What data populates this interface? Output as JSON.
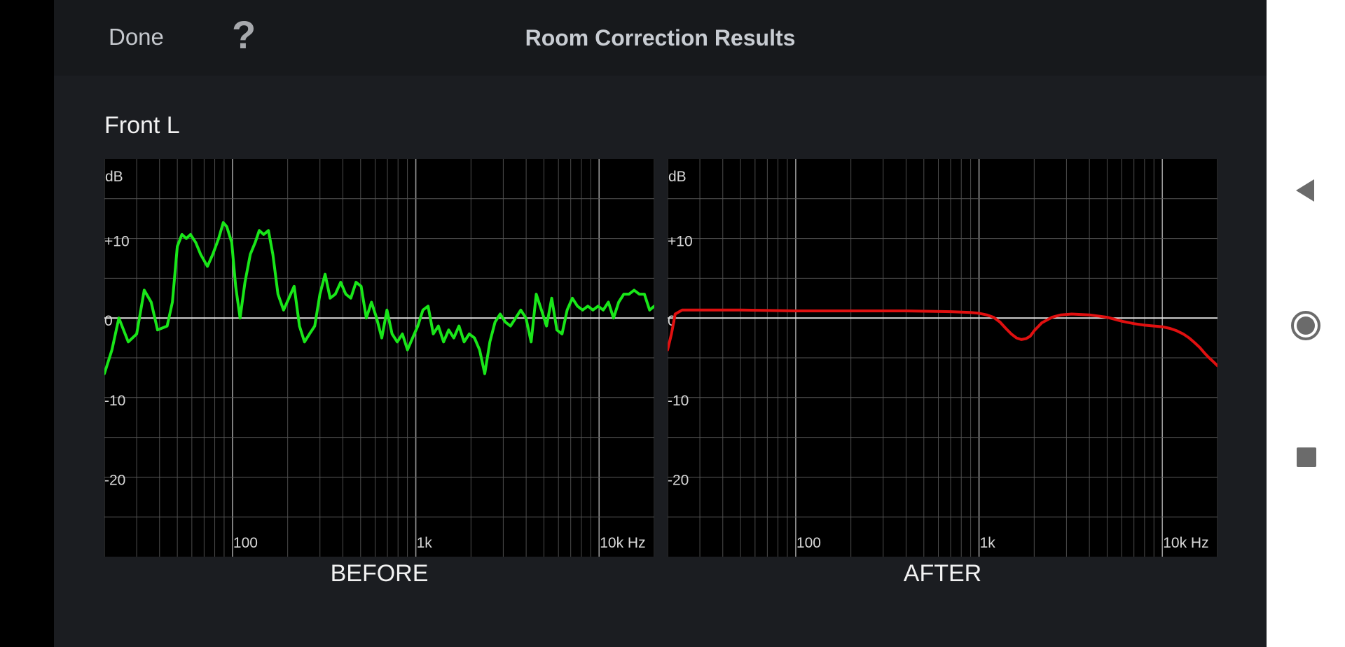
{
  "header": {
    "done_label": "Done",
    "help_label": "?",
    "title": "Room Correction Results"
  },
  "channel_name": "Front L",
  "colors": {
    "before_curve": "#19e619",
    "after_curve": "#e01010",
    "background": "#1b1d21",
    "header": "#17191c"
  },
  "icons": {
    "next": "chevron-right-icon",
    "nav_back": "triangle-back-icon",
    "nav_home": "circle-home-icon",
    "nav_recent": "square-recents-icon"
  },
  "chart_data": [
    {
      "type": "line",
      "title": "BEFORE",
      "xlabel": "Hz",
      "ylabel": "dB",
      "x_scale": "log",
      "xlim": [
        20,
        20000
      ],
      "ylim": [
        -30,
        20
      ],
      "x_ticks": [
        {
          "value": 100,
          "label": "100"
        },
        {
          "value": 1000,
          "label": "1k"
        },
        {
          "value": 10000,
          "label": "10k Hz"
        }
      ],
      "y_ticks": [
        {
          "value": 10,
          "label": "+10"
        },
        {
          "value": 0,
          "label": "0"
        },
        {
          "value": -10,
          "label": "-10"
        },
        {
          "value": -20,
          "label": "-20"
        }
      ],
      "grid": true,
      "series": [
        {
          "color": "#19e619",
          "points": [
            [
              20,
              -7
            ],
            [
              22,
              -4
            ],
            [
              24,
              0
            ],
            [
              27,
              -3
            ],
            [
              30,
              -2
            ],
            [
              33,
              3.5
            ],
            [
              36,
              2
            ],
            [
              39,
              -1.5
            ],
            [
              44,
              -1
            ],
            [
              47,
              2
            ],
            [
              50,
              9
            ],
            [
              53,
              10.5
            ],
            [
              56,
              10
            ],
            [
              59,
              10.5
            ],
            [
              63,
              9.5
            ],
            [
              67,
              8
            ],
            [
              73,
              6.5
            ],
            [
              78,
              8
            ],
            [
              84,
              10
            ],
            [
              89,
              12
            ],
            [
              93,
              11.5
            ],
            [
              99,
              9.5
            ],
            [
              104,
              4
            ],
            [
              110,
              0
            ],
            [
              117,
              4.5
            ],
            [
              125,
              8
            ],
            [
              133,
              9.5
            ],
            [
              140,
              11
            ],
            [
              148,
              10.5
            ],
            [
              157,
              11
            ],
            [
              166,
              8
            ],
            [
              177,
              3
            ],
            [
              190,
              1
            ],
            [
              203,
              2.5
            ],
            [
              217,
              4
            ],
            [
              232,
              -1
            ],
            [
              247,
              -3
            ],
            [
              263,
              -2
            ],
            [
              281,
              -1
            ],
            [
              300,
              3
            ],
            [
              320,
              5.5
            ],
            [
              341,
              2.5
            ],
            [
              364,
              3
            ],
            [
              389,
              4.5
            ],
            [
              415,
              3
            ],
            [
              442,
              2.5
            ],
            [
              472,
              4.5
            ],
            [
              503,
              4
            ],
            [
              537,
              0
            ],
            [
              573,
              2
            ],
            [
              611,
              0
            ],
            [
              652,
              -2.5
            ],
            [
              696,
              1
            ],
            [
              742,
              -2
            ],
            [
              792,
              -3
            ],
            [
              845,
              -2
            ],
            [
              901,
              -4
            ],
            [
              961,
              -2.5
            ],
            [
              1025,
              -1
            ],
            [
              1093,
              1
            ],
            [
              1167,
              1.5
            ],
            [
              1245,
              -2
            ],
            [
              1328,
              -1
            ],
            [
              1417,
              -3
            ],
            [
              1511,
              -1.5
            ],
            [
              1612,
              -2.5
            ],
            [
              1720,
              -1
            ],
            [
              1835,
              -3
            ],
            [
              1958,
              -2
            ],
            [
              2089,
              -2.5
            ],
            [
              2228,
              -4
            ],
            [
              2377,
              -7
            ],
            [
              2536,
              -3
            ],
            [
              2706,
              -0.5
            ],
            [
              2887,
              0.5
            ],
            [
              3080,
              -0.5
            ],
            [
              3285,
              -1
            ],
            [
              3505,
              0
            ],
            [
              3739,
              1
            ],
            [
              3989,
              0
            ],
            [
              4256,
              -3
            ],
            [
              4540,
              3
            ],
            [
              4844,
              1
            ],
            [
              5168,
              -1
            ],
            [
              5513,
              2.5
            ],
            [
              5882,
              -1.5
            ],
            [
              6275,
              -2
            ],
            [
              6695,
              1
            ],
            [
              7142,
              2.5
            ],
            [
              7620,
              1.5
            ],
            [
              8129,
              1
            ],
            [
              8673,
              1.5
            ],
            [
              9252,
              1
            ],
            [
              9871,
              1.5
            ],
            [
              10531,
              1
            ],
            [
              11235,
              2
            ],
            [
              11986,
              0
            ],
            [
              12788,
              2
            ],
            [
              13642,
              3
            ],
            [
              14554,
              3
            ],
            [
              15527,
              3.5
            ],
            [
              16565,
              3
            ],
            [
              17672,
              3
            ],
            [
              18853,
              1
            ],
            [
              20000,
              1.5
            ]
          ]
        }
      ]
    },
    {
      "type": "line",
      "title": "AFTER",
      "xlabel": "Hz",
      "ylabel": "dB",
      "x_scale": "log",
      "xlim": [
        20,
        20000
      ],
      "ylim": [
        -30,
        20
      ],
      "x_ticks": [
        {
          "value": 100,
          "label": "100"
        },
        {
          "value": 1000,
          "label": "1k"
        },
        {
          "value": 10000,
          "label": "10k Hz"
        }
      ],
      "y_ticks": [
        {
          "value": 10,
          "label": "+10"
        },
        {
          "value": 0,
          "label": "0"
        },
        {
          "value": -10,
          "label": "-10"
        },
        {
          "value": -20,
          "label": "-20"
        }
      ],
      "grid": true,
      "series": [
        {
          "color": "#e01010",
          "points": [
            [
              20,
              -4
            ],
            [
              21,
              -2
            ],
            [
              22,
              0.5
            ],
            [
              24,
              1
            ],
            [
              28,
              1
            ],
            [
              35,
              1
            ],
            [
              50,
              1
            ],
            [
              100,
              0.9
            ],
            [
              200,
              0.9
            ],
            [
              400,
              0.9
            ],
            [
              700,
              0.8
            ],
            [
              900,
              0.7
            ],
            [
              1000,
              0.6
            ],
            [
              1100,
              0.4
            ],
            [
              1200,
              0.1
            ],
            [
              1300,
              -0.5
            ],
            [
              1400,
              -1.3
            ],
            [
              1500,
              -2
            ],
            [
              1600,
              -2.5
            ],
            [
              1700,
              -2.7
            ],
            [
              1800,
              -2.6
            ],
            [
              1900,
              -2.3
            ],
            [
              2000,
              -1.6
            ],
            [
              2200,
              -0.6
            ],
            [
              2500,
              0.1
            ],
            [
              2800,
              0.4
            ],
            [
              3200,
              0.5
            ],
            [
              4000,
              0.4
            ],
            [
              5000,
              0.1
            ],
            [
              6000,
              -0.4
            ],
            [
              7000,
              -0.7
            ],
            [
              8000,
              -0.9
            ],
            [
              9000,
              -1
            ],
            [
              10000,
              -1.1
            ],
            [
              11000,
              -1.3
            ],
            [
              12000,
              -1.6
            ],
            [
              13000,
              -2
            ],
            [
              14000,
              -2.5
            ],
            [
              15000,
              -3.1
            ],
            [
              16000,
              -3.7
            ],
            [
              17000,
              -4.4
            ],
            [
              18000,
              -5
            ],
            [
              19000,
              -5.5
            ],
            [
              20000,
              -6
            ]
          ]
        }
      ]
    }
  ]
}
